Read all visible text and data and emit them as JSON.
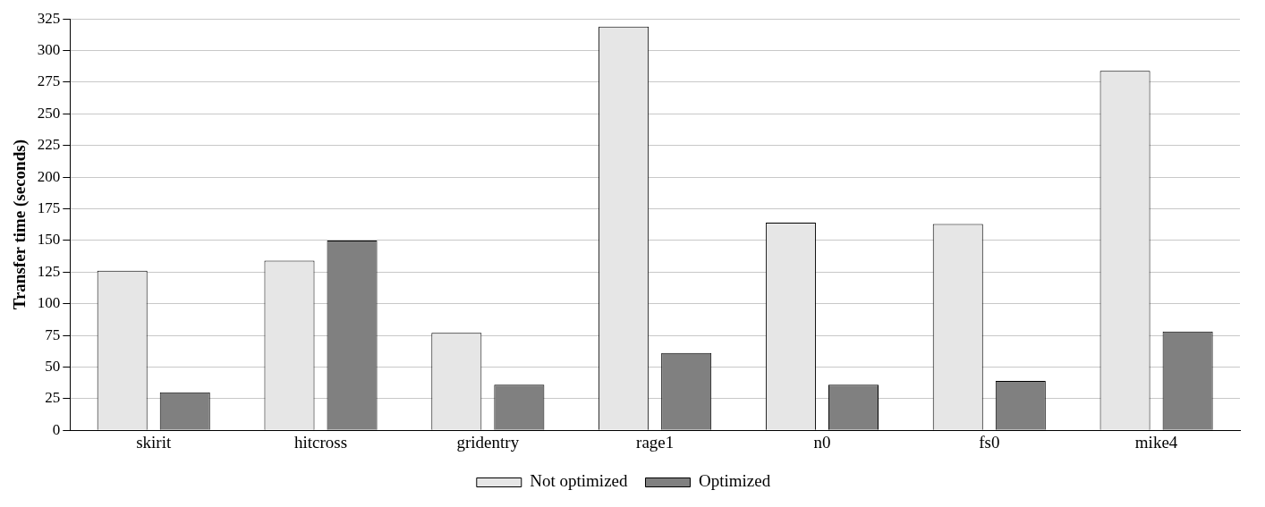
{
  "chart_data": {
    "type": "bar",
    "ylabel": "Transfer time (seconds)",
    "categories": [
      "skirit",
      "hitcross",
      "gridentry",
      "rage1",
      "n0",
      "fs0",
      "mike4"
    ],
    "series": [
      {
        "name": "Not optimized",
        "color": "#e6e6e6",
        "values": [
          126,
          134,
          77,
          319,
          164,
          163,
          284
        ]
      },
      {
        "name": "Optimized",
        "color": "#808080",
        "values": [
          30,
          150,
          36,
          61,
          36,
          39,
          78
        ]
      }
    ],
    "ylim": [
      0,
      325
    ],
    "yticks": [
      0,
      25,
      50,
      75,
      100,
      125,
      150,
      175,
      200,
      225,
      250,
      275,
      300,
      325
    ],
    "grid": "y",
    "legend": "bottom"
  }
}
